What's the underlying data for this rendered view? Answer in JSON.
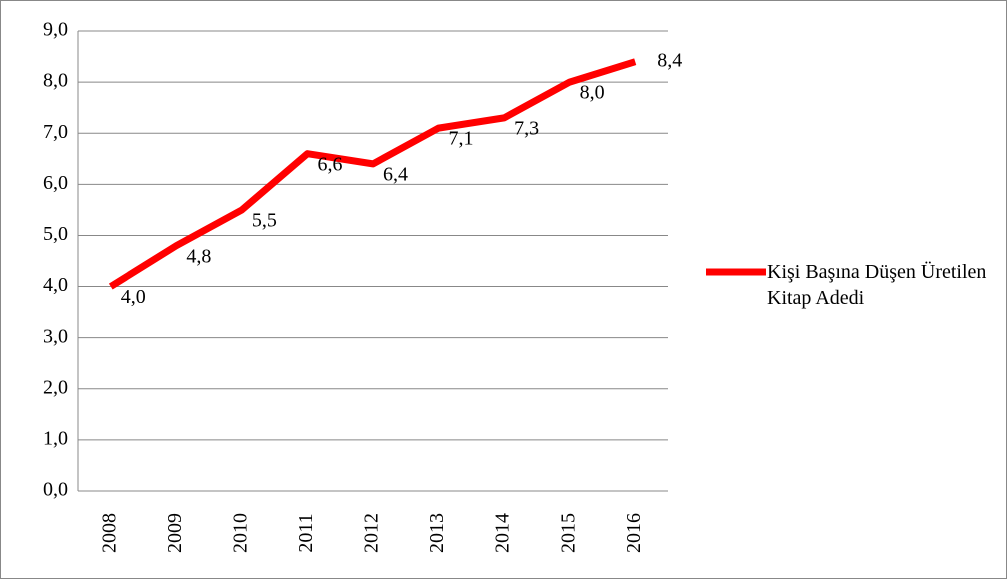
{
  "chart_data": {
    "type": "line",
    "categories": [
      "2008",
      "2009",
      "2010",
      "2011",
      "2012",
      "2013",
      "2014",
      "2015",
      "2016"
    ],
    "series": [
      {
        "name": "Kişi Başına Düşen Üretilen Kitap Adedi",
        "color": "#ff0000",
        "values": [
          4.0,
          4.8,
          5.5,
          6.6,
          6.4,
          7.1,
          7.3,
          8.0,
          8.4
        ],
        "value_labels": [
          "4,0",
          "4,8",
          "5,5",
          "6,6",
          "6,4",
          "7,1",
          "7,3",
          "8,0",
          "8,4"
        ]
      }
    ],
    "ylim": [
      0,
      9
    ],
    "yticks": [
      {
        "value": 0,
        "label": "0,0"
      },
      {
        "value": 1,
        "label": "1,0"
      },
      {
        "value": 2,
        "label": "2,0"
      },
      {
        "value": 3,
        "label": "3,0"
      },
      {
        "value": 4,
        "label": "4,0"
      },
      {
        "value": 5,
        "label": "5,0"
      },
      {
        "value": 6,
        "label": "6,0"
      },
      {
        "value": 7,
        "label": "7,0"
      },
      {
        "value": 8,
        "label": "8,0"
      },
      {
        "value": 9,
        "label": "9,0"
      }
    ],
    "grid": true,
    "legend": "right"
  }
}
